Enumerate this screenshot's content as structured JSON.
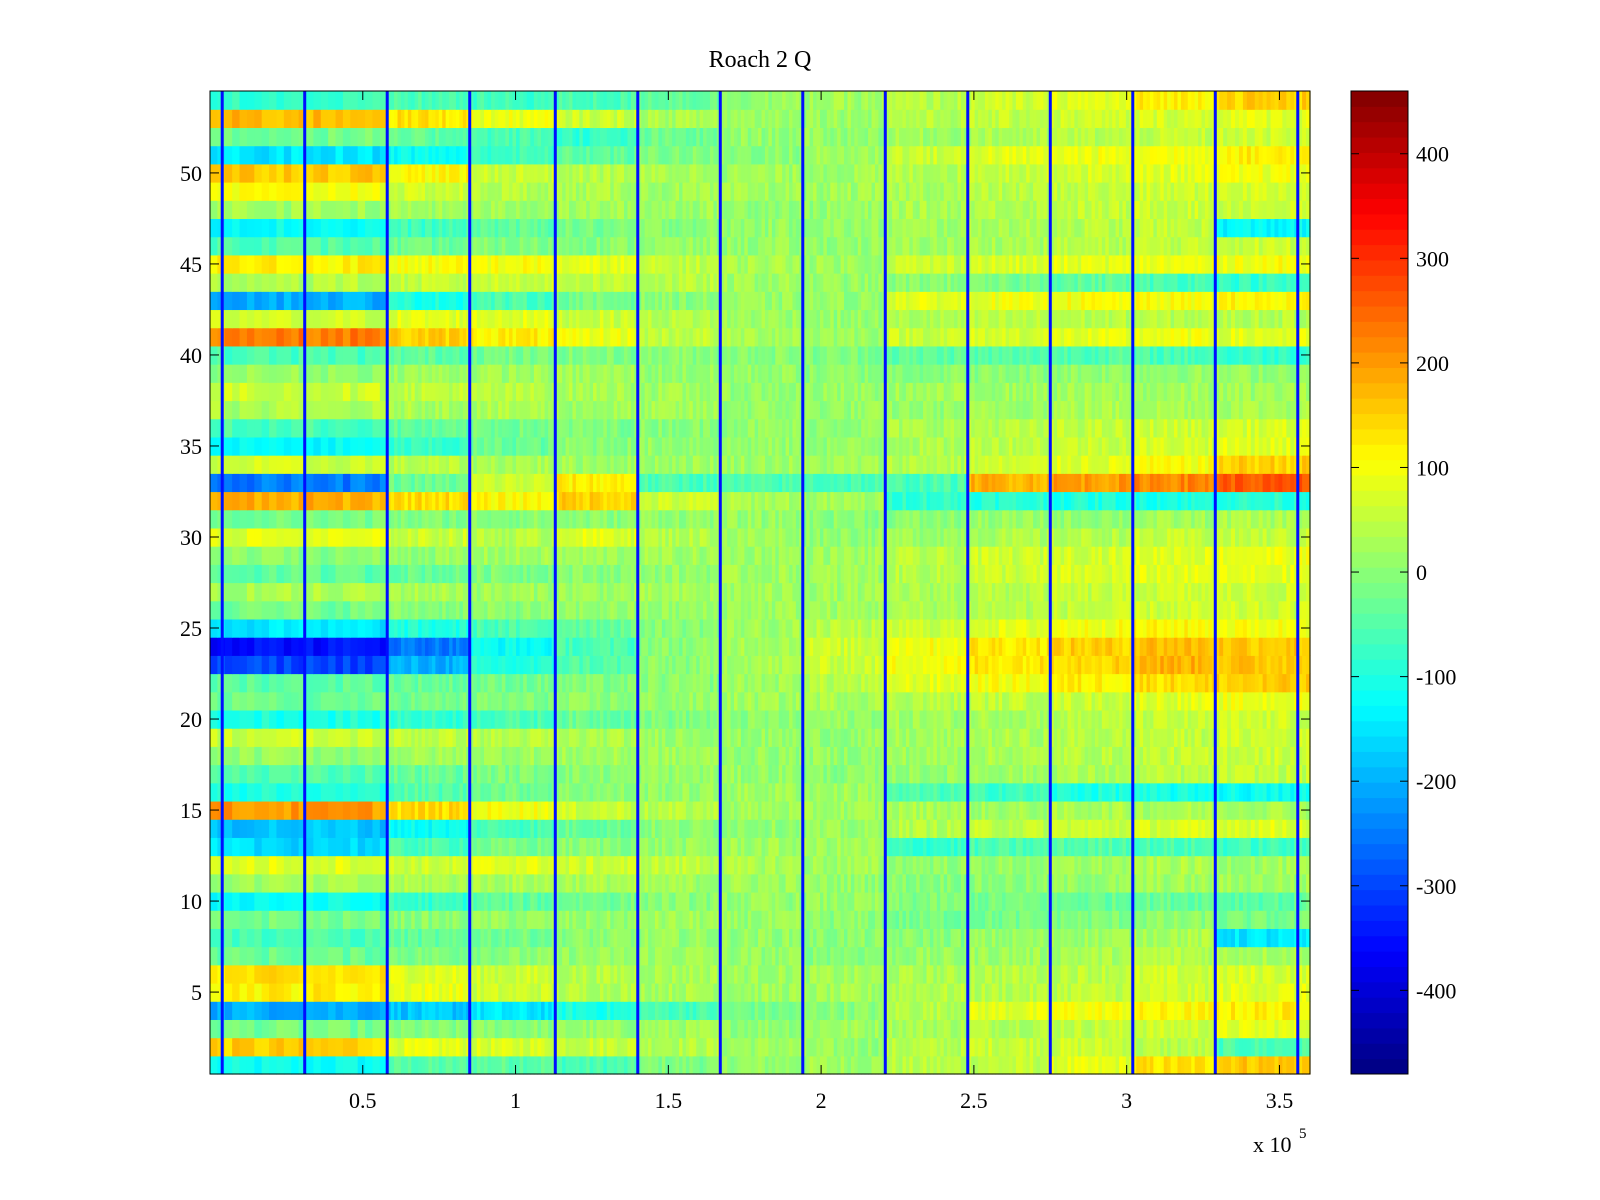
{
  "chart_data": {
    "type": "heatmap",
    "title": "Roach 2 Q",
    "xlabel": "",
    "ylabel": "",
    "x_multiplier_label": "x 10",
    "x_multiplier_exponent": "5",
    "xlim": [
      0,
      3.6
    ],
    "ylim": [
      0.5,
      54.5
    ],
    "x_ticks": [
      0.5,
      1,
      1.5,
      2,
      2.5,
      3,
      3.5
    ],
    "x_tick_labels": [
      "0.5",
      "1",
      "1.5",
      "2",
      "2.5",
      "3",
      "3.5"
    ],
    "y_ticks": [
      5,
      10,
      15,
      20,
      25,
      30,
      35,
      40,
      45,
      50
    ],
    "y_tick_labels": [
      "5",
      "10",
      "15",
      "20",
      "25",
      "30",
      "35",
      "40",
      "45",
      "50"
    ],
    "colorbar": {
      "colormap": "jet",
      "clim": [
        -480,
        460
      ],
      "ticks": [
        400,
        300,
        200,
        100,
        0,
        -100,
        -200,
        -300,
        -400
      ],
      "tick_labels": [
        "400",
        "300",
        "200",
        "100",
        "0",
        "-100",
        "-200",
        "-300",
        "-400"
      ]
    },
    "rows": 54,
    "segment_edges_x": [
      0,
      0.58,
      0.85,
      1.13,
      1.4,
      1.67,
      1.94,
      2.21,
      2.48,
      2.75,
      3.02,
      3.29,
      3.6
    ],
    "periodic_lines_x": [
      0.04,
      0.31,
      0.58,
      0.85,
      1.13,
      1.4,
      1.67,
      1.94,
      2.21,
      2.48,
      2.75,
      3.02,
      3.29,
      3.56
    ],
    "periodic_line_value": -350,
    "segment_values": [
      [
        -120,
        -50,
        -40,
        -60,
        -10,
        10,
        20,
        40,
        50,
        80,
        130,
        160
      ],
      [
        150,
        80,
        70,
        60,
        40,
        20,
        10,
        40,
        60,
        60,
        40,
        -60
      ],
      [
        -20,
        -10,
        0,
        10,
        20,
        10,
        20,
        30,
        40,
        50,
        60,
        80
      ],
      [
        -200,
        -180,
        -150,
        -100,
        -60,
        -20,
        0,
        40,
        80,
        100,
        110,
        120
      ],
      [
        120,
        90,
        60,
        40,
        30,
        20,
        20,
        40,
        40,
        50,
        60,
        80
      ],
      [
        130,
        80,
        60,
        40,
        30,
        20,
        20,
        30,
        40,
        50,
        60,
        70
      ],
      [
        -30,
        -10,
        0,
        10,
        20,
        10,
        0,
        10,
        20,
        30,
        40,
        30
      ],
      [
        -60,
        -40,
        -20,
        0,
        10,
        10,
        0,
        0,
        10,
        20,
        30,
        -150
      ],
      [
        -20,
        0,
        10,
        10,
        20,
        10,
        0,
        -20,
        -20,
        -10,
        0,
        -20
      ],
      [
        -120,
        -80,
        -40,
        -20,
        0,
        10,
        10,
        -10,
        -20,
        -30,
        -30,
        -40
      ],
      [
        20,
        30,
        30,
        30,
        20,
        20,
        10,
        0,
        0,
        10,
        20,
        20
      ],
      [
        80,
        60,
        80,
        60,
        50,
        30,
        20,
        10,
        10,
        20,
        30,
        20
      ],
      [
        -160,
        -60,
        -20,
        0,
        10,
        20,
        20,
        -80,
        -60,
        -50,
        -60,
        -70
      ],
      [
        -180,
        -120,
        -60,
        -30,
        0,
        10,
        10,
        40,
        50,
        60,
        70,
        80
      ],
      [
        200,
        140,
        100,
        60,
        40,
        20,
        20,
        30,
        20,
        30,
        30,
        30
      ],
      [
        -100,
        -50,
        -20,
        0,
        10,
        20,
        20,
        -60,
        -70,
        -100,
        -110,
        -120
      ],
      [
        -50,
        -30,
        -10,
        0,
        10,
        10,
        0,
        10,
        20,
        30,
        40,
        50
      ],
      [
        10,
        20,
        20,
        20,
        20,
        10,
        10,
        20,
        30,
        40,
        50,
        60
      ],
      [
        60,
        50,
        40,
        30,
        20,
        10,
        10,
        20,
        30,
        40,
        50,
        60
      ],
      [
        -100,
        -80,
        -60,
        -30,
        -10,
        0,
        10,
        20,
        30,
        40,
        50,
        60
      ],
      [
        -30,
        -20,
        -10,
        0,
        10,
        20,
        30,
        40,
        50,
        60,
        80,
        90
      ],
      [
        -40,
        -30,
        -20,
        -10,
        0,
        20,
        40,
        80,
        100,
        120,
        140,
        150
      ],
      [
        -300,
        -200,
        -100,
        -50,
        0,
        30,
        60,
        100,
        130,
        150,
        180,
        160
      ],
      [
        -350,
        -250,
        -120,
        -60,
        0,
        30,
        60,
        100,
        130,
        150,
        170,
        160
      ],
      [
        -150,
        -100,
        -60,
        -30,
        0,
        20,
        40,
        60,
        80,
        100,
        110,
        100
      ],
      [
        -20,
        0,
        0,
        10,
        10,
        20,
        20,
        30,
        40,
        50,
        60,
        60
      ],
      [
        30,
        30,
        20,
        20,
        20,
        20,
        20,
        30,
        40,
        50,
        60,
        60
      ],
      [
        -40,
        -30,
        -10,
        0,
        10,
        20,
        20,
        40,
        60,
        70,
        80,
        80
      ],
      [
        0,
        10,
        20,
        20,
        20,
        20,
        20,
        40,
        60,
        70,
        80,
        90
      ],
      [
        80,
        60,
        40,
        80,
        40,
        20,
        10,
        20,
        30,
        40,
        50,
        50
      ],
      [
        -20,
        -10,
        0,
        0,
        10,
        10,
        0,
        0,
        10,
        10,
        20,
        30
      ],
      [
        180,
        140,
        110,
        150,
        60,
        30,
        20,
        -80,
        -90,
        -100,
        -100,
        -90
      ],
      [
        -250,
        -30,
        60,
        120,
        -60,
        -60,
        -60,
        -60,
        180,
        200,
        220,
        260
      ],
      [
        60,
        40,
        30,
        20,
        20,
        20,
        20,
        40,
        60,
        80,
        100,
        150
      ],
      [
        -130,
        -80,
        -30,
        0,
        10,
        10,
        10,
        30,
        50,
        60,
        70,
        80
      ],
      [
        -60,
        -40,
        -20,
        -10,
        0,
        10,
        10,
        30,
        40,
        50,
        60,
        70
      ],
      [
        30,
        30,
        30,
        20,
        20,
        10,
        10,
        10,
        20,
        30,
        30,
        30
      ],
      [
        60,
        50,
        40,
        30,
        20,
        10,
        10,
        20,
        20,
        20,
        20,
        20
      ],
      [
        10,
        20,
        20,
        20,
        10,
        10,
        0,
        0,
        0,
        10,
        10,
        10
      ],
      [
        -60,
        -40,
        -20,
        -10,
        0,
        0,
        -10,
        -40,
        -50,
        -50,
        -60,
        -80
      ],
      [
        230,
        150,
        120,
        90,
        50,
        30,
        20,
        60,
        70,
        80,
        90,
        80
      ],
      [
        60,
        80,
        80,
        60,
        40,
        20,
        10,
        30,
        40,
        40,
        40,
        40
      ],
      [
        -200,
        -100,
        -60,
        -20,
        0,
        10,
        10,
        80,
        90,
        100,
        100,
        110
      ],
      [
        40,
        50,
        60,
        50,
        40,
        20,
        10,
        0,
        -20,
        -40,
        -60,
        -80
      ],
      [
        120,
        100,
        100,
        80,
        50,
        30,
        20,
        60,
        70,
        80,
        90,
        100
      ],
      [
        -50,
        -30,
        -10,
        0,
        10,
        10,
        10,
        20,
        30,
        40,
        50,
        60
      ],
      [
        -120,
        -70,
        -40,
        -20,
        0,
        10,
        10,
        20,
        30,
        40,
        50,
        -130
      ],
      [
        20,
        20,
        20,
        20,
        20,
        10,
        10,
        30,
        40,
        50,
        60,
        60
      ],
      [
        100,
        60,
        40,
        30,
        20,
        20,
        20,
        30,
        40,
        50,
        60,
        70
      ],
      [
        160,
        110,
        60,
        40,
        30,
        20,
        20,
        40,
        60,
        70,
        80,
        90
      ],
      [
        -150,
        -120,
        -70,
        -40,
        -10,
        0,
        20,
        60,
        80,
        90,
        100,
        120
      ],
      [
        -20,
        -40,
        -60,
        -80,
        -30,
        10,
        10,
        20,
        30,
        40,
        50,
        60
      ],
      [
        170,
        130,
        90,
        60,
        30,
        20,
        20,
        40,
        50,
        60,
        70,
        80
      ],
      [
        -80,
        -60,
        -70,
        -60,
        -30,
        10,
        20,
        40,
        60,
        80,
        120,
        150
      ]
    ]
  }
}
